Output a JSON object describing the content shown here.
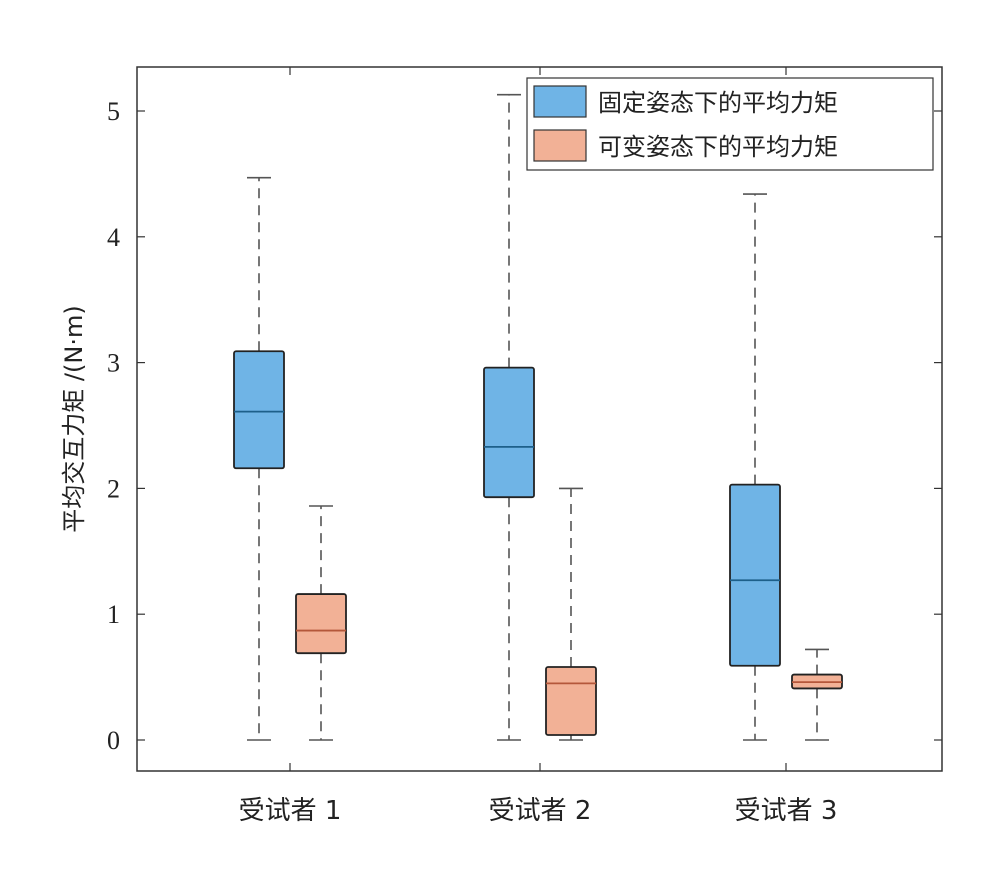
{
  "chart_data": {
    "type": "box",
    "ylabel": "平均交互力矩 /(N·m)",
    "xlabel": "",
    "ylim": [
      -0.25,
      5.4
    ],
    "yticks": [
      0,
      1,
      2,
      3,
      4,
      5
    ],
    "categories": [
      "受试者 1",
      "受试者 2",
      "受试者 3"
    ],
    "legend_position": "top-right",
    "grid": false,
    "series": [
      {
        "name": "固定姿态下的平均力矩",
        "color": "#6fb4e6",
        "boxes": [
          {
            "min": 0,
            "q1": 2.16,
            "median": 2.61,
            "q3": 3.09,
            "max": 4.47
          },
          {
            "min": 0,
            "q1": 1.93,
            "median": 2.33,
            "q3": 2.96,
            "max": 5.13
          },
          {
            "min": 0,
            "q1": 0.59,
            "median": 1.27,
            "q3": 2.03,
            "max": 4.34
          }
        ]
      },
      {
        "name": "可变姿态下的平均力矩",
        "color": "#f2b196",
        "boxes": [
          {
            "min": 0,
            "q1": 0.69,
            "median": 0.87,
            "q3": 1.16,
            "max": 1.86
          },
          {
            "min": 0,
            "q1": 0.04,
            "median": 0.45,
            "q3": 0.58,
            "max": 2.0
          },
          {
            "min": 0,
            "q1": 0.41,
            "median": 0.46,
            "q3": 0.52,
            "max": 0.72
          }
        ]
      }
    ]
  }
}
